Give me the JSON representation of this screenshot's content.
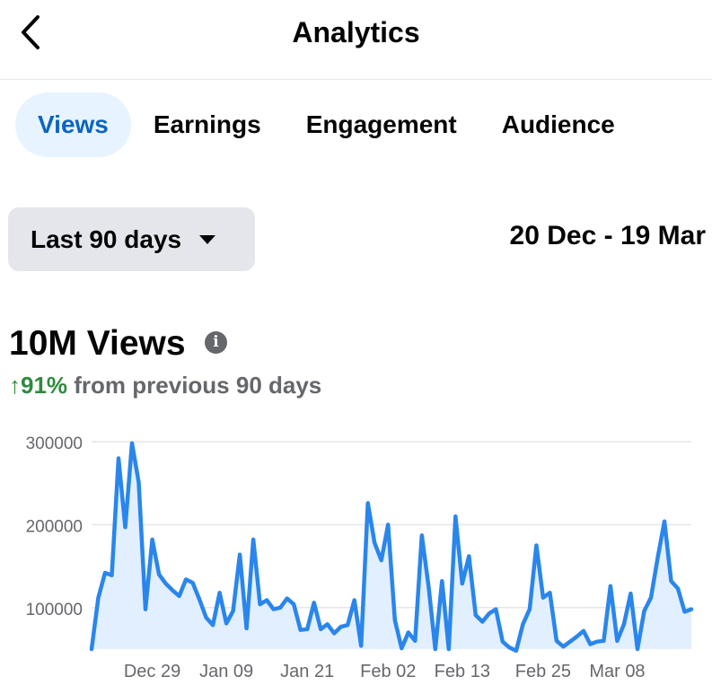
{
  "header": {
    "title": "Analytics"
  },
  "tabs": [
    {
      "label": "Views",
      "active": true
    },
    {
      "label": "Earnings",
      "active": false
    },
    {
      "label": "Engagement",
      "active": false
    },
    {
      "label": "Audience",
      "active": false
    }
  ],
  "filter": {
    "selected": "Last 90 days",
    "date_range": "20 Dec - 19 Mar"
  },
  "summary": {
    "total": "10M Views",
    "change_pct": "↑91%",
    "change_text": " from previous 90 days"
  },
  "colors": {
    "accent": "#0b64c0",
    "line": "#2a86ec",
    "fill": "#e2efff",
    "positive": "#2e8b3d",
    "grid": "#e4e6eb"
  },
  "chart_data": {
    "type": "area",
    "ylim": [
      50000,
      300000
    ],
    "y_ticks": [
      "300000",
      "200000",
      "100000"
    ],
    "y_tick_values": [
      300000,
      200000,
      100000
    ],
    "x_tick_labels": [
      "Dec 29",
      "Jan 09",
      "Jan 21",
      "Feb 02",
      "Feb 13",
      "Feb 25",
      "Mar 08"
    ],
    "x_tick_indices": [
      9,
      20,
      32,
      44,
      55,
      67,
      78
    ],
    "series": [
      {
        "values": [
          50000,
          112000,
          142000,
          139000,
          280000,
          197000,
          298000,
          251000,
          98000,
          182000,
          140000,
          129000,
          121000,
          114000,
          134000,
          130000,
          110000,
          88000,
          79000,
          118000,
          81000,
          96000,
          164000,
          75000,
          182000,
          104000,
          109000,
          98000,
          100000,
          111000,
          104000,
          73000,
          74000,
          106000,
          74000,
          80000,
          69000,
          77000,
          79000,
          109000,
          54000,
          226000,
          178000,
          157000,
          200000,
          85000,
          51000,
          70000,
          60000,
          187000,
          126000,
          50000,
          132000,
          50000,
          210000,
          129000,
          162000,
          91000,
          83000,
          93000,
          98000,
          59000,
          52000,
          48000,
          80000,
          98000,
          175000,
          112000,
          118000,
          60000,
          53000,
          59000,
          65000,
          72000,
          56000,
          59000,
          60000,
          126000,
          60000,
          80000,
          117000,
          50000,
          96000,
          112000,
          160000,
          204000,
          132000,
          123000,
          95000,
          98000
        ]
      }
    ]
  }
}
